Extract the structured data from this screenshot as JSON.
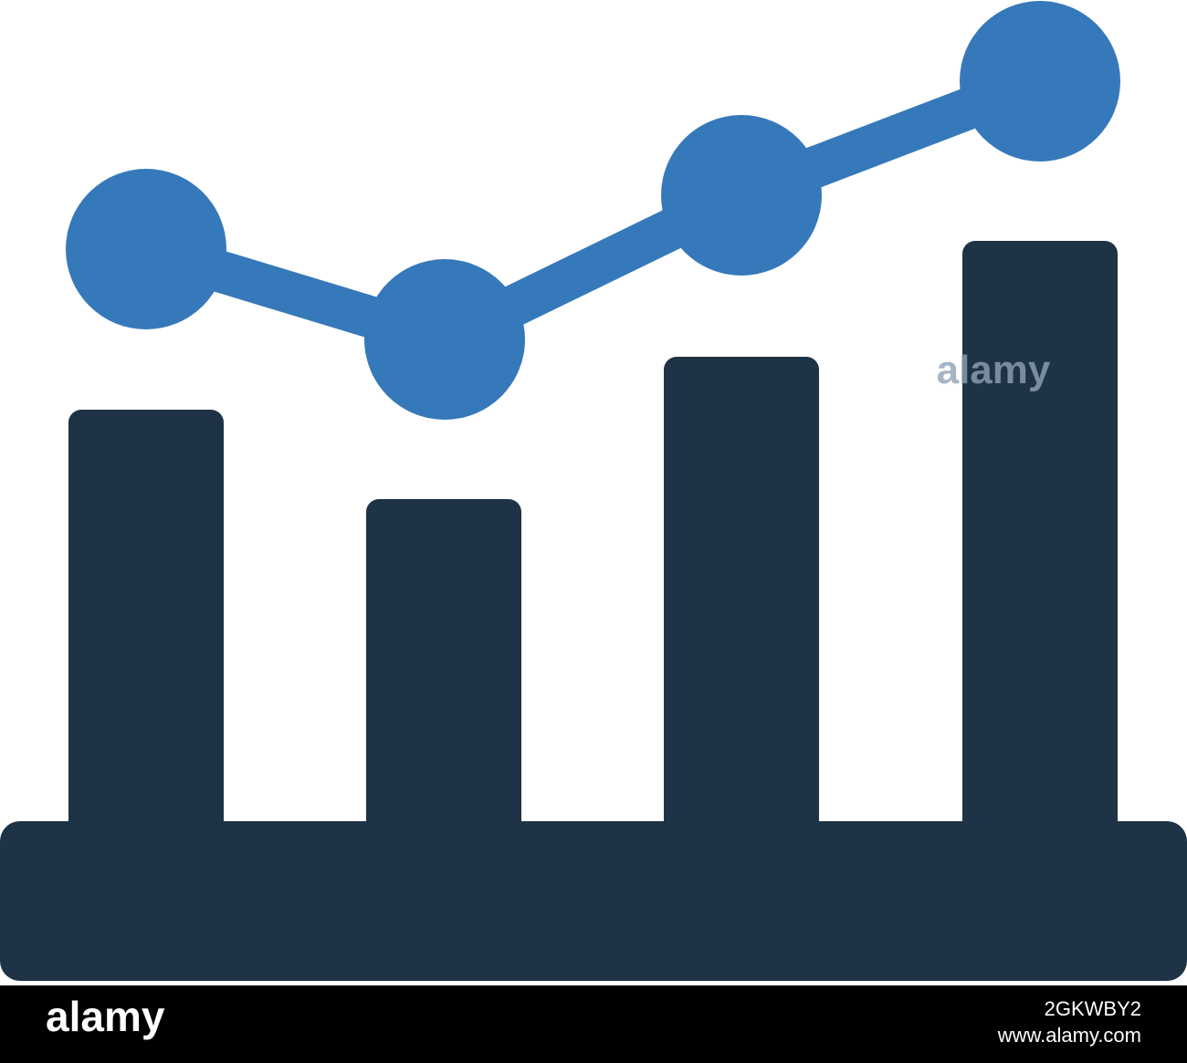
{
  "watermark": "alamy",
  "footer": {
    "brand": "alamy",
    "image_id": "2GKWBY2",
    "url": "www.alamy.com"
  }
}
